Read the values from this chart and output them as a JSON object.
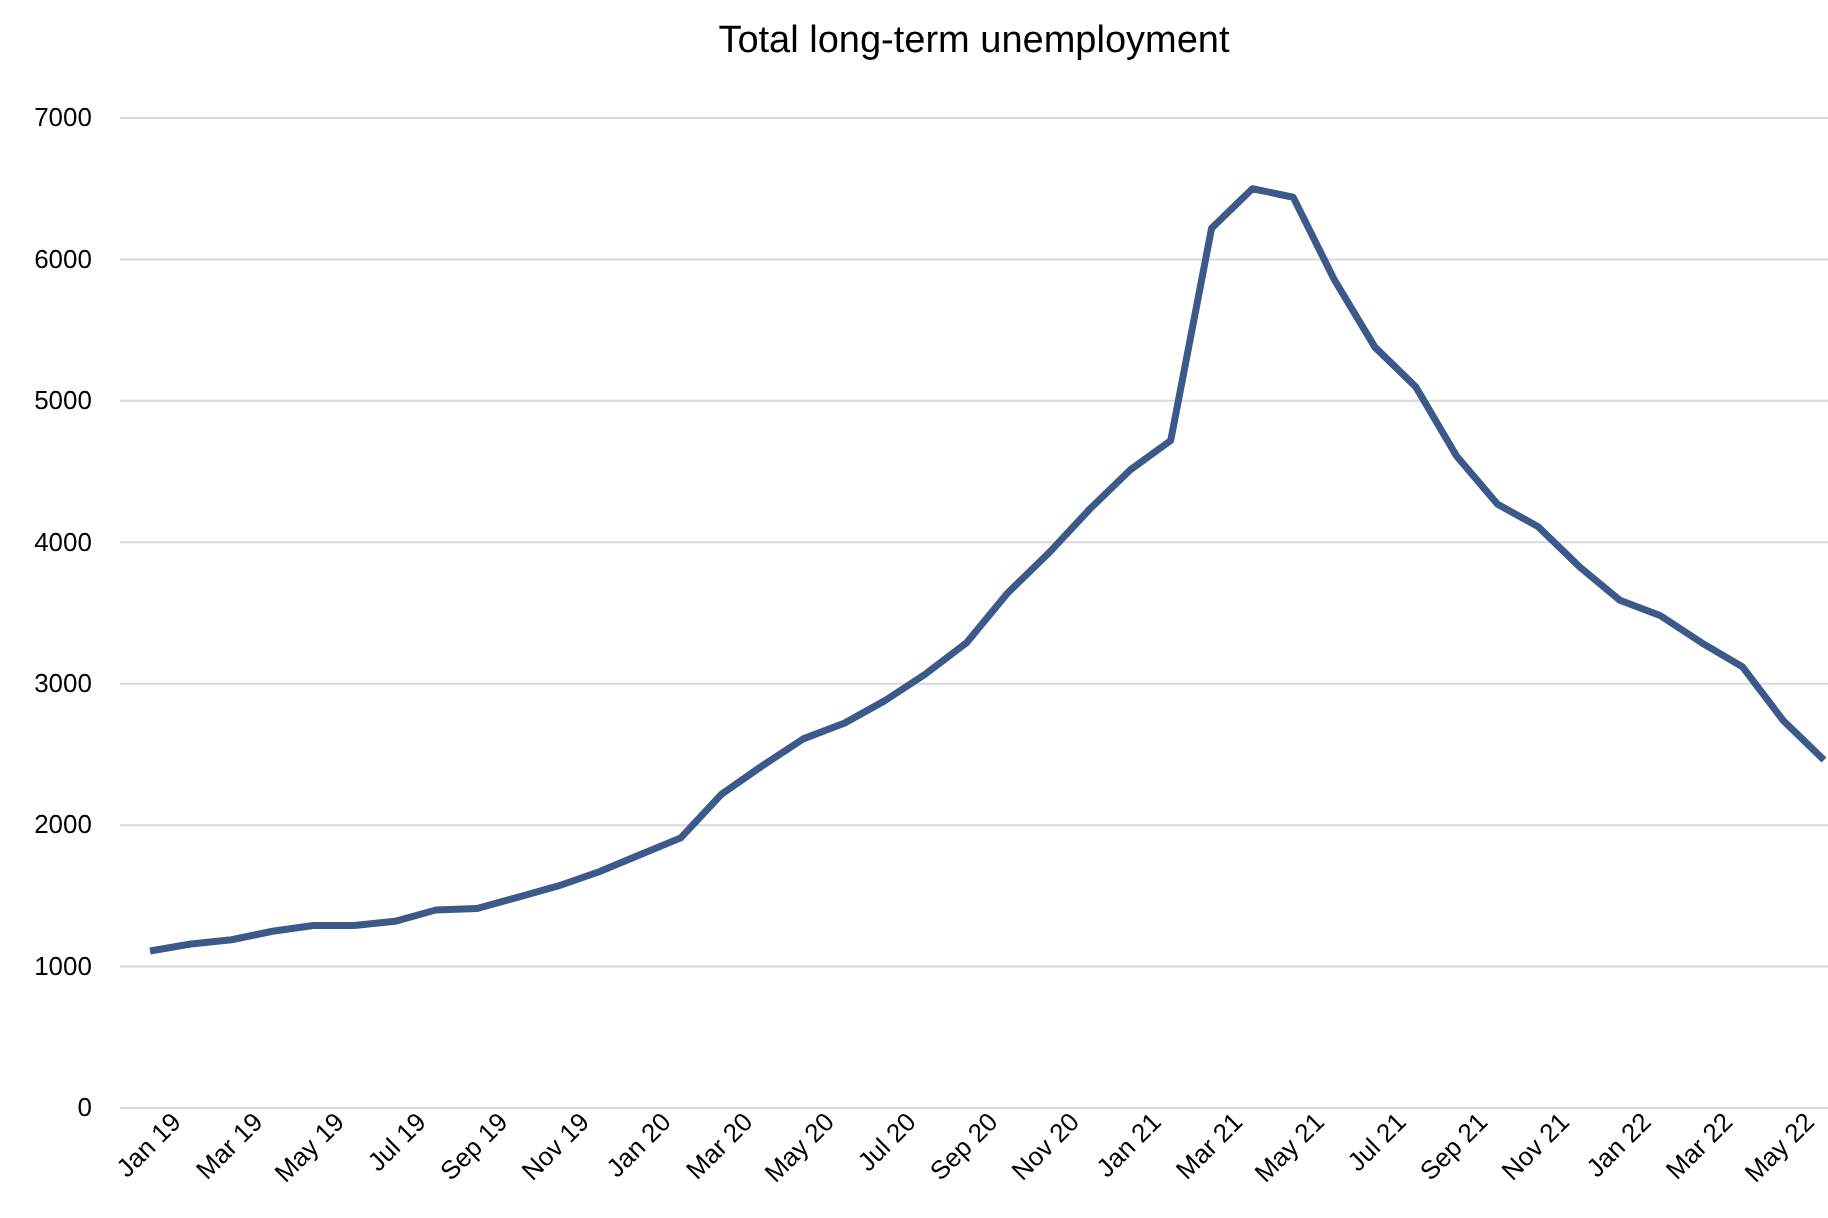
{
  "chart_data": {
    "type": "line",
    "title": "Total long-term unemployment",
    "categories": [
      "Jan 19",
      null,
      "Mar 19",
      null,
      "May 19",
      null,
      "Jul 19",
      null,
      "Sep 19",
      null,
      "Nov 19",
      null,
      "Jan 20",
      null,
      "Mar 20",
      null,
      "May 20",
      null,
      "Jul 20",
      null,
      "Sep 20",
      null,
      "Nov 20",
      null,
      "Jan 21",
      null,
      "Mar 21",
      null,
      "May 21",
      null,
      "Jul 21",
      null,
      "Sep 21",
      null,
      "Nov 21",
      null,
      "Jan 22",
      null,
      "Mar 22",
      null,
      "May 22",
      null
    ],
    "series": [
      {
        "color": "#3b5a8a",
        "values": [
          1110,
          1160,
          1190,
          1250,
          1290,
          1290,
          1320,
          1400,
          1410,
          1490,
          1570,
          1670,
          1790,
          1910,
          2220,
          2420,
          2610,
          2720,
          2880,
          3070,
          3290,
          3640,
          3920,
          4230,
          4510,
          4720,
          6220,
          6500,
          6440,
          5860,
          5380,
          5100,
          4610,
          4270,
          4110,
          3830,
          3590,
          3480,
          3290,
          3120,
          2740,
          2460
        ]
      }
    ],
    "ylim": [
      0,
      7000
    ],
    "yticks": [
      0,
      1000,
      2000,
      3000,
      4000,
      5000,
      6000,
      7000
    ],
    "grid": "y",
    "marker": "none",
    "line_style": "solid"
  }
}
